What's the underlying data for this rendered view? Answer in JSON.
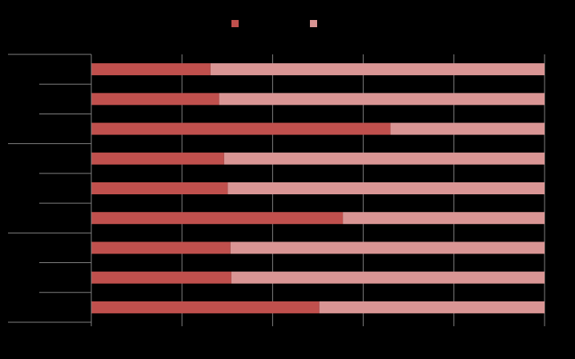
{
  "chart_data": {
    "type": "bar",
    "orientation": "horizontal",
    "stacked": true,
    "percent_stacked": true,
    "title": "",
    "xlabel": "",
    "ylabel": "",
    "categories": [
      "",
      "",
      "",
      "",
      "",
      "",
      "",
      "",
      ""
    ],
    "series": [
      {
        "color": "#c0504d",
        "values": [
          26.3,
          28.2,
          66.0,
          29.3,
          30.1,
          55.5,
          30.7,
          30.9,
          50.3
        ]
      },
      {
        "color": "#d99594",
        "values": [
          73.7,
          71.8,
          34.0,
          70.7,
          69.9,
          44.5,
          69.3,
          69.1,
          49.7
        ]
      }
    ],
    "xlim": [
      0,
      100
    ],
    "x_ticks": [
      0,
      20,
      40,
      60,
      80,
      100
    ],
    "category_groups": 3,
    "grid": true,
    "legend": "top-center"
  },
  "colors": {
    "background": "#000000",
    "gridline": "#808080",
    "axis": "#808080"
  }
}
